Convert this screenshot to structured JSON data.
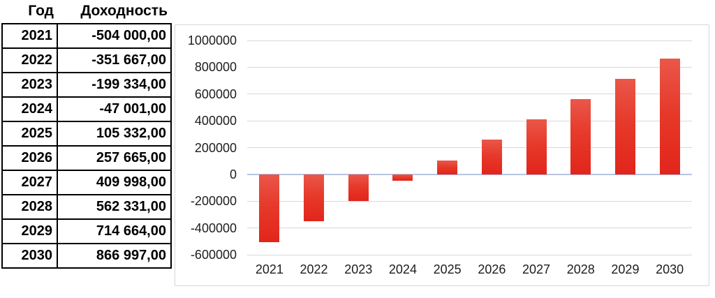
{
  "table": {
    "headers": [
      "Год",
      "Доходность"
    ],
    "rows": [
      {
        "year": "2021",
        "value": "-504 000,00"
      },
      {
        "year": "2022",
        "value": "-351 667,00"
      },
      {
        "year": "2023",
        "value": "-199 334,00"
      },
      {
        "year": "2024",
        "value": "-47 001,00"
      },
      {
        "year": "2025",
        "value": "105 332,00"
      },
      {
        "year": "2026",
        "value": "257 665,00"
      },
      {
        "year": "2027",
        "value": "409 998,00"
      },
      {
        "year": "2028",
        "value": "562 331,00"
      },
      {
        "year": "2029",
        "value": "714 664,00"
      },
      {
        "year": "2030",
        "value": "866 997,00"
      }
    ]
  },
  "chart_data": {
    "type": "bar",
    "title": "",
    "xlabel": "",
    "ylabel": "",
    "categories": [
      "2021",
      "2022",
      "2023",
      "2024",
      "2025",
      "2026",
      "2027",
      "2028",
      "2029",
      "2030"
    ],
    "values": [
      -504000,
      -351667,
      -199334,
      -47001,
      105332,
      257665,
      409998,
      562331,
      714664,
      866997
    ],
    "ylim": [
      -600000,
      1000000
    ],
    "ytick_step": 200000,
    "yticks": [
      "1000000",
      "800000",
      "600000",
      "400000",
      "200000",
      "0",
      "-200000",
      "-400000",
      "-600000"
    ],
    "grid": true,
    "legend": false,
    "bar_color_top": "#ea5749",
    "bar_color_bottom": "#e2251a",
    "gridline_color": "#d9d9d9",
    "zero_axis_color": "#b7c5e1",
    "border_color": "#d6d6d6"
  }
}
